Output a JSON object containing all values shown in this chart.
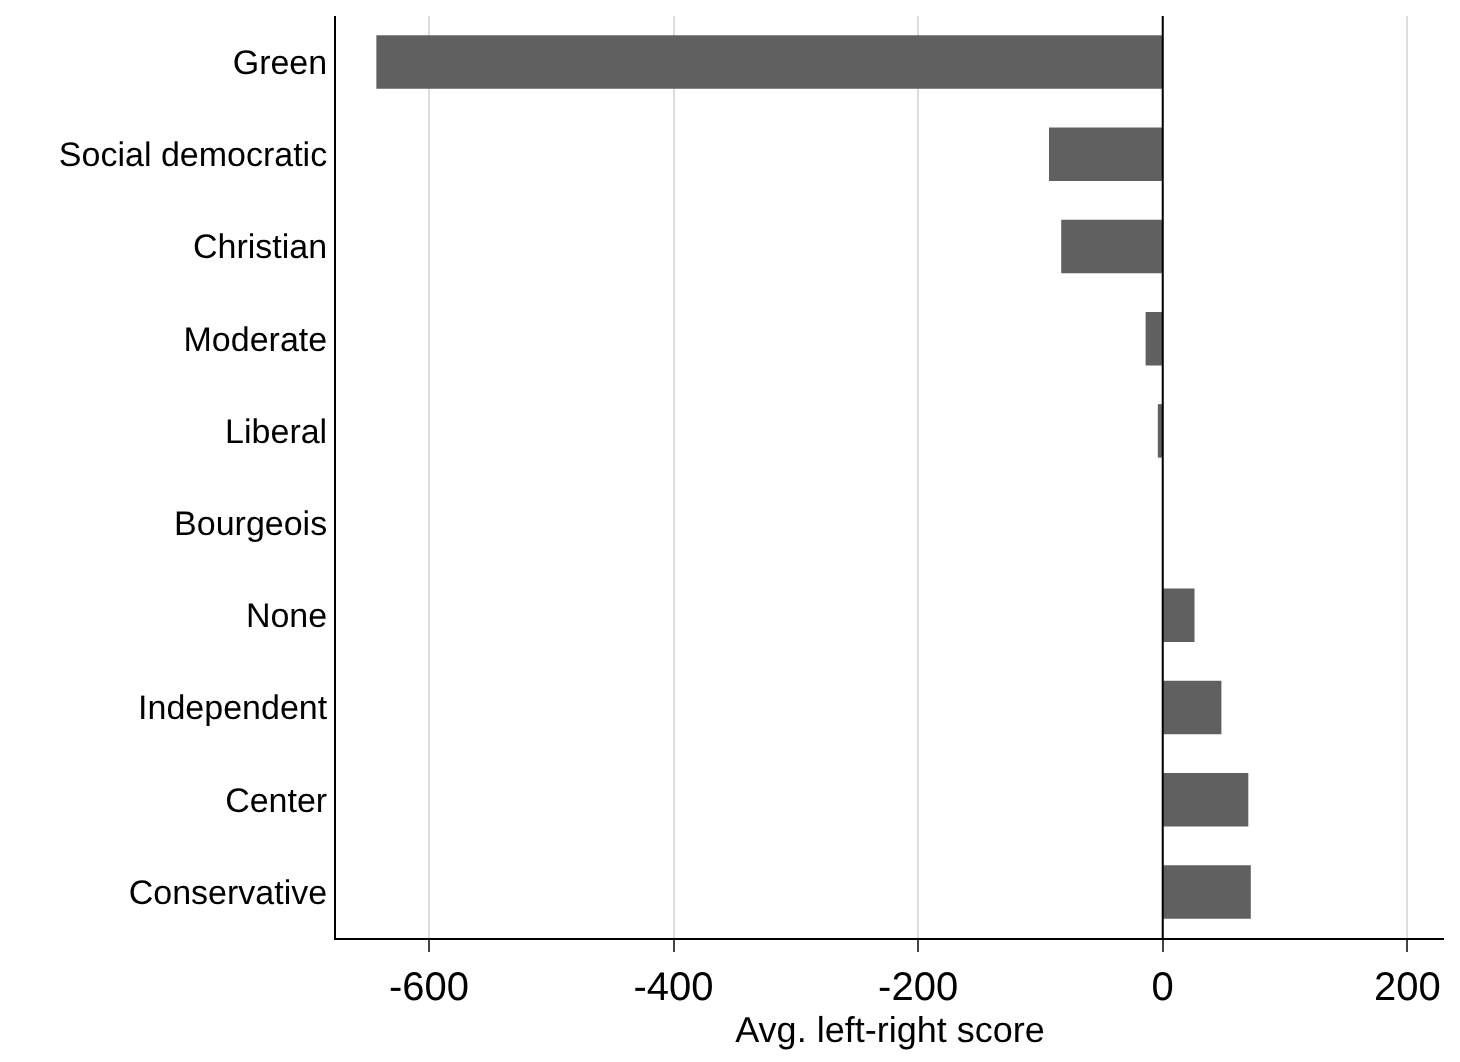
{
  "chart_data": {
    "type": "bar",
    "orientation": "horizontal",
    "xlabel": "Avg. left-right score",
    "categories": [
      "Green",
      "Social democratic",
      "Christian",
      "Moderate",
      "Liberal",
      "Bourgeois",
      "None",
      "Independent",
      "Center",
      "Conservative"
    ],
    "values": [
      -643,
      -93,
      -83,
      -14,
      -4,
      0,
      26,
      48,
      70,
      72
    ],
    "color": "#606060",
    "xlim": [
      -676,
      230
    ],
    "xticks": [
      -600,
      -400,
      -200,
      0,
      200
    ],
    "grid": "x",
    "ref_lines": [
      {
        "axis": "x",
        "value": 0,
        "color": "#000000"
      }
    ]
  }
}
